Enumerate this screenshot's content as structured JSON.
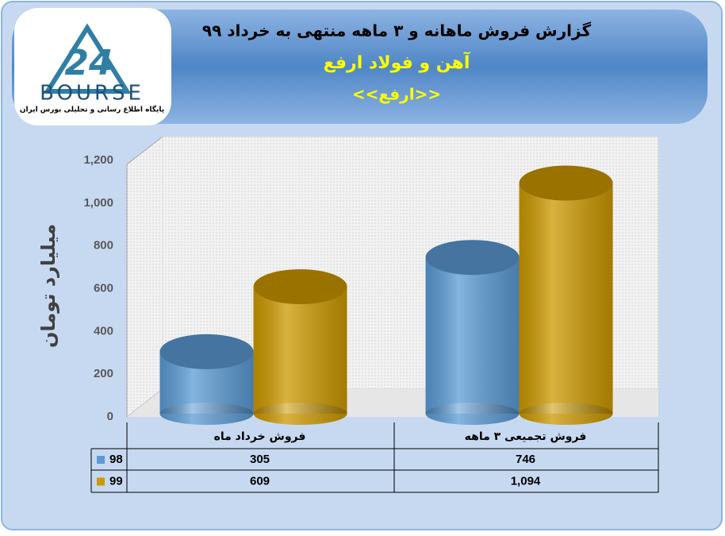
{
  "logo": {
    "number": "24",
    "brand": "BOURSE",
    "tagline": "پایگاه اطلاع رسانی و تحلیلی بورس ایران"
  },
  "chart_data": {
    "type": "bar",
    "title": "گزارش فروش ماهانه و ۳ ماهه منتهی به خرداد ۹۹",
    "subtitle": "آهن و فولاد ارفع",
    "symbol": "<<ارفع>>",
    "y_label": "میلیارد تومان",
    "categories": [
      "فروش خرداد  ماه",
      "فروش تجمیعی ۳ ماهه"
    ],
    "series": [
      {
        "name": "98",
        "color": "#5b9bd5",
        "values": [
          305,
          746
        ]
      },
      {
        "name": "99",
        "color": "#cc9900",
        "values": [
          609,
          1094
        ],
        "value_labels": [
          "609",
          "1,094"
        ]
      }
    ],
    "ylim": [
      0,
      1200
    ],
    "yticks": [
      0,
      200,
      400,
      600,
      800,
      {
        "value": 1000,
        "label": "1,000"
      },
      {
        "value": 1200,
        "label": "1,200"
      }
    ],
    "grid": false
  }
}
